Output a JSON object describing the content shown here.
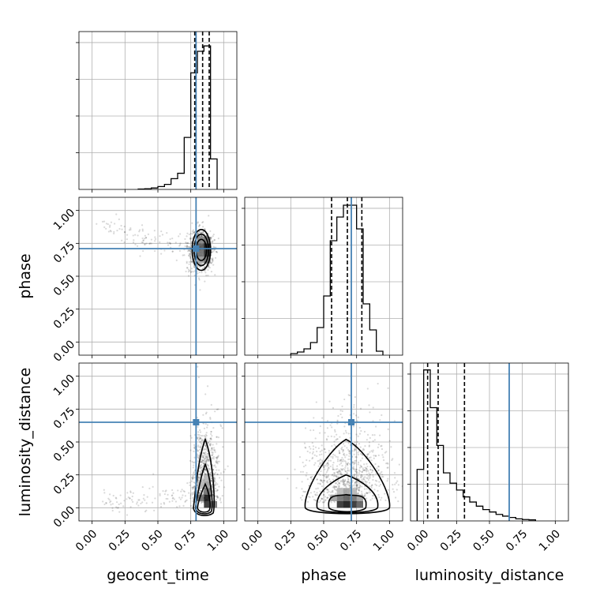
{
  "chart_data": {
    "type": "corner",
    "parameters": [
      "geocent_time",
      "phase",
      "luminosity_distance"
    ],
    "xlabels": [
      "geocent_time",
      "phase",
      "luminosity_distance"
    ],
    "ylabels": [
      "",
      "phase",
      "luminosity_distance"
    ],
    "tick_labels": [
      "0.00",
      "0.25",
      "0.50",
      "0.75",
      "1.00"
    ],
    "ticks": [
      0,
      0.25,
      0.5,
      0.75,
      1.0
    ],
    "xlim": [
      -0.1,
      1.1
    ],
    "truths": {
      "geocent_time": 0.79,
      "phase": 0.71,
      "luminosity_distance": 0.65
    },
    "truth_color": "#4682b4",
    "grid": true,
    "histograms": [
      {
        "param": "geocent_time",
        "ylim": [
          0,
          0.44
        ],
        "bin_edges": [
          0.35,
          0.4,
          0.45,
          0.5,
          0.55,
          0.6,
          0.65,
          0.7,
          0.75,
          0.8,
          0.85,
          0.9,
          0.95
        ],
        "counts": [
          0.001,
          0.002,
          0.004,
          0.008,
          0.014,
          0.03,
          0.045,
          0.145,
          0.325,
          0.385,
          0.4,
          0.085
        ],
        "quantiles": [
          0.78,
          0.84,
          0.89
        ]
      },
      {
        "param": "phase",
        "ylim": [
          0,
          0.2
        ],
        "bin_edges": [
          0.25,
          0.3,
          0.35,
          0.4,
          0.45,
          0.5,
          0.55,
          0.6,
          0.65,
          0.7,
          0.75,
          0.8,
          0.85,
          0.9,
          0.95
        ],
        "counts": [
          0.002,
          0.004,
          0.008,
          0.016,
          0.035,
          0.075,
          0.145,
          0.175,
          0.19,
          0.19,
          0.16,
          0.065,
          0.032,
          0.005
        ],
        "quantiles": [
          0.56,
          0.68,
          0.79
        ]
      },
      {
        "param": "luminosity_distance",
        "ylim": [
          0,
          0.46
        ],
        "bin_edges": [
          -0.05,
          0.0,
          0.05,
          0.1,
          0.15,
          0.2,
          0.25,
          0.3,
          0.35,
          0.4,
          0.45,
          0.5,
          0.55,
          0.6,
          0.65,
          0.7,
          0.75,
          0.8,
          0.85
        ],
        "counts": [
          0.15,
          0.44,
          0.33,
          0.22,
          0.14,
          0.11,
          0.09,
          0.07,
          0.055,
          0.043,
          0.033,
          0.026,
          0.019,
          0.014,
          0.01,
          0.006,
          0.004,
          0.003
        ],
        "quantiles": [
          0.03,
          0.11,
          0.31
        ]
      }
    ],
    "panels_2d": [
      {
        "x": "geocent_time",
        "y": "phase",
        "ylim": [
          -0.1,
          1.1
        ],
        "center": [
          0.83,
          0.7
        ],
        "spread": [
          0.035,
          0.08
        ],
        "tail": {
          "to": [
            0.05,
            0.85
          ],
          "fraction": 0.12
        },
        "contour_radii": [
          [
            0.04,
            0.08
          ],
          [
            0.055,
            0.12
          ],
          [
            0.07,
            0.155
          ]
        ],
        "core_cells": [
          [
            0.8,
            0.6,
            0.4
          ],
          [
            0.85,
            0.6,
            0.6
          ],
          [
            0.8,
            0.65,
            0.6
          ],
          [
            0.85,
            0.65,
            0.9
          ],
          [
            0.8,
            0.7,
            0.7
          ],
          [
            0.85,
            0.7,
            1.0
          ],
          [
            0.8,
            0.75,
            0.5
          ],
          [
            0.85,
            0.75,
            0.6
          ]
        ]
      },
      {
        "x": "geocent_time",
        "y": "luminosity_distance",
        "ylim": [
          -0.1,
          1.1
        ],
        "center": [
          0.86,
          0.12
        ],
        "spread": [
          0.04,
          0.16
        ],
        "tail": {
          "to": [
            0.1,
            0.02
          ],
          "fraction": 0.12
        },
        "contour_shape": "teardrop",
        "core_cells": [
          [
            0.85,
            0.0,
            0.9
          ],
          [
            0.9,
            0.0,
            0.6
          ],
          [
            0.85,
            0.05,
            1.0
          ],
          [
            0.8,
            0.05,
            0.6
          ],
          [
            0.85,
            0.1,
            0.6
          ],
          [
            0.85,
            0.15,
            0.4
          ],
          [
            0.8,
            0.15,
            0.3
          ],
          [
            0.85,
            0.2,
            0.3
          ]
        ]
      },
      {
        "x": "phase",
        "y": "luminosity_distance",
        "ylim": [
          -0.1,
          1.1
        ],
        "center": [
          0.68,
          0.12
        ],
        "spread": [
          0.12,
          0.16
        ],
        "contour_shape": "triangle",
        "core_cells": [
          [
            0.6,
            0.0,
            0.9
          ],
          [
            0.65,
            0.0,
            1.0
          ],
          [
            0.7,
            0.0,
            0.9
          ],
          [
            0.75,
            0.0,
            0.7
          ],
          [
            0.55,
            0.05,
            0.4
          ],
          [
            0.6,
            0.05,
            0.6
          ],
          [
            0.65,
            0.05,
            0.7
          ],
          [
            0.7,
            0.05,
            0.6
          ],
          [
            0.75,
            0.05,
            0.4
          ],
          [
            0.6,
            0.1,
            0.3
          ],
          [
            0.65,
            0.1,
            0.4
          ],
          [
            0.7,
            0.1,
            0.3
          ]
        ]
      }
    ]
  }
}
